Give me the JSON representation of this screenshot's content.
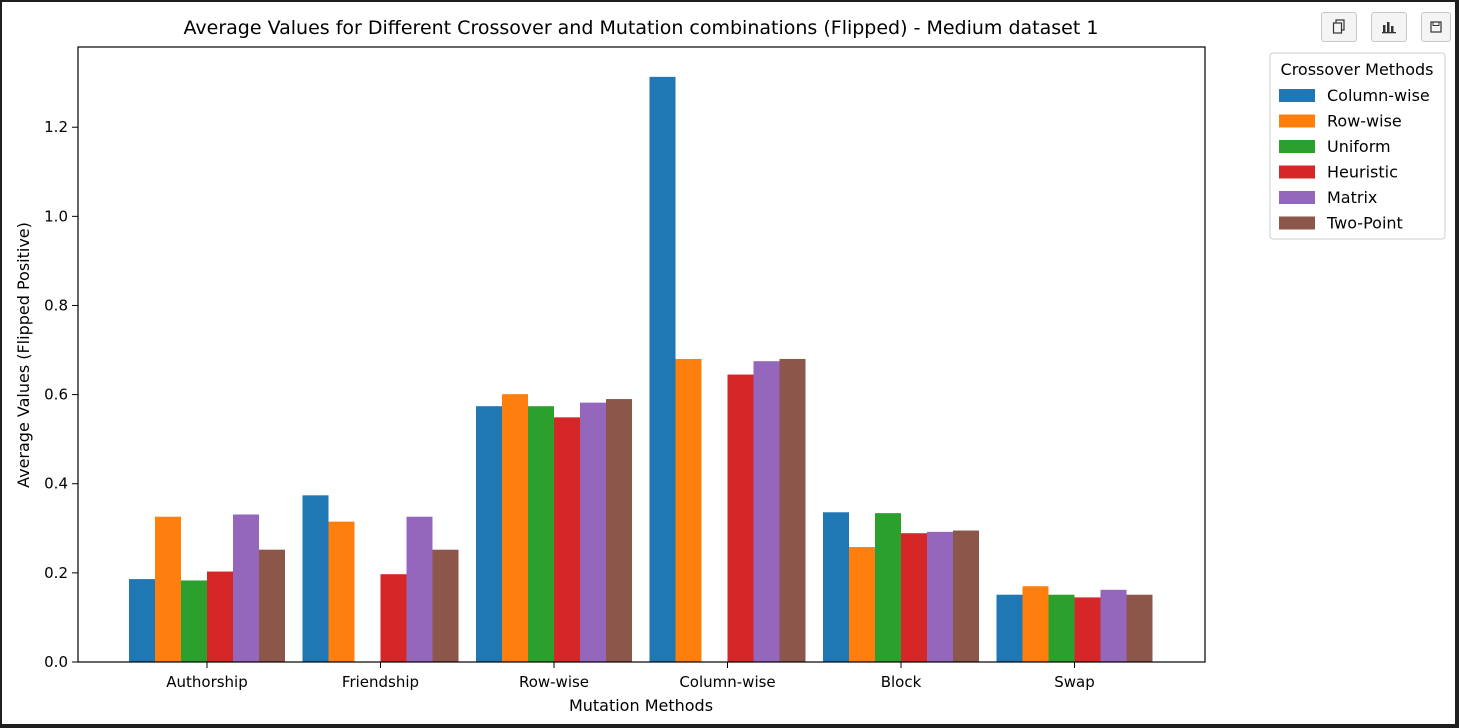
{
  "toolbar": {
    "icons": [
      "copy-icon",
      "chart-icon",
      "save-icon"
    ]
  },
  "chart_data": {
    "type": "bar",
    "title": "Average Values for Different Crossover and Mutation combinations (Flipped) - Medium dataset 1",
    "xlabel": "Mutation Methods",
    "ylabel": "Average Values (Flipped Positive)",
    "ylim": [
      0,
      1.38
    ],
    "yticks": [
      "0.0",
      "0.2",
      "0.4",
      "0.6",
      "0.8",
      "1.0",
      "1.2"
    ],
    "categories": [
      "Authorship",
      "Friendship",
      "Row-wise",
      "Column-wise",
      "Block",
      "Swap"
    ],
    "legend": {
      "title": "Crossover Methods",
      "position": "outside-top-right"
    },
    "series": [
      {
        "name": "Column-wise",
        "color": "#1f77b4",
        "values": [
          0.186,
          0.374,
          0.574,
          1.313,
          0.336,
          0.151
        ]
      },
      {
        "name": "Row-wise",
        "color": "#ff7f0e",
        "values": [
          0.326,
          0.315,
          0.601,
          0.68,
          0.258,
          0.17
        ]
      },
      {
        "name": "Uniform",
        "color": "#2ca02c",
        "values": [
          0.183,
          0.0,
          0.574,
          0.0,
          0.334,
          0.151
        ]
      },
      {
        "name": "Heuristic",
        "color": "#d62728",
        "values": [
          0.203,
          0.197,
          0.549,
          0.645,
          0.289,
          0.145
        ]
      },
      {
        "name": "Matrix",
        "color": "#9467bd",
        "values": [
          0.331,
          0.326,
          0.582,
          0.675,
          0.292,
          0.162
        ]
      },
      {
        "name": "Two-Point",
        "color": "#8c564b",
        "values": [
          0.252,
          0.252,
          0.59,
          0.68,
          0.295,
          0.151
        ]
      }
    ]
  }
}
